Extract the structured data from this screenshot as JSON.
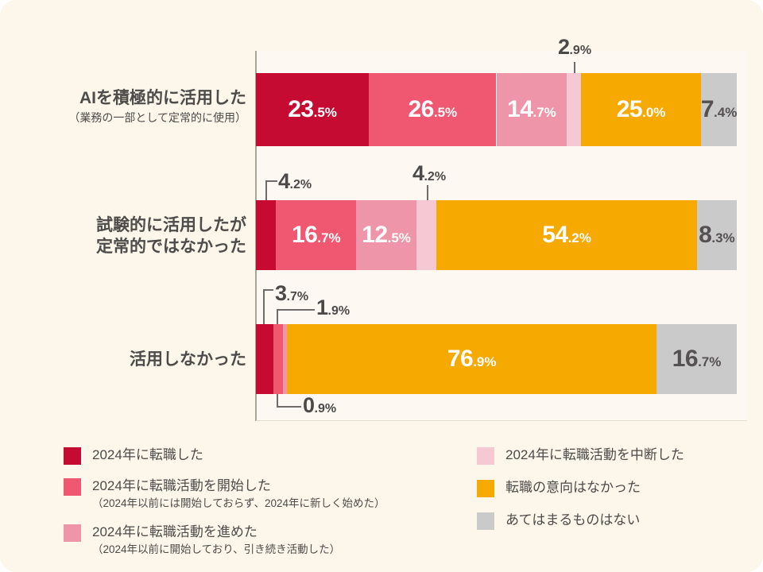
{
  "page": {
    "background_color": "#fcf7ea",
    "text_color": "#4e4b4b"
  },
  "chart_data": {
    "type": "bar",
    "subtype": "horizontal-stacked",
    "unit": "%",
    "xlim": [
      0,
      100
    ],
    "grid": false,
    "legend_position": "bottom",
    "series": [
      {
        "name": "2024年に転職した",
        "note": "",
        "color": "#c60b33"
      },
      {
        "name": "2024年に転職活動を開始した",
        "note": "（2024年以前には開始しておらず、2024年に新しく始めた）",
        "color": "#f05871"
      },
      {
        "name": "2024年に転職活動を進めた",
        "note": "（2024年以前に開始しており、引き続き活動した）",
        "color": "#ef95a9"
      },
      {
        "name": "2024年に転職活動を中断した",
        "note": "",
        "color": "#f6c8d3"
      },
      {
        "name": "転職の意向はなかった",
        "note": "",
        "color": "#f6a900"
      },
      {
        "name": "あてはまるものはない",
        "note": "",
        "color": "#cbcaca"
      }
    ],
    "rows": [
      {
        "label_lines": [
          "AIを積極的に活用した"
        ],
        "sublabel": "（業務の一部として定常的に使用）",
        "values": [
          23.5,
          26.5,
          14.7,
          2.9,
          25.0,
          7.4
        ]
      },
      {
        "label_lines": [
          "試験的に活用したが",
          "定常的ではなかった"
        ],
        "sublabel": "",
        "values": [
          4.2,
          16.7,
          12.5,
          4.2,
          54.2,
          8.3
        ]
      },
      {
        "label_lines": [
          "活用しなかった"
        ],
        "sublabel": "",
        "values": [
          3.7,
          1.9,
          0.9,
          0,
          76.9,
          16.7
        ]
      }
    ]
  }
}
